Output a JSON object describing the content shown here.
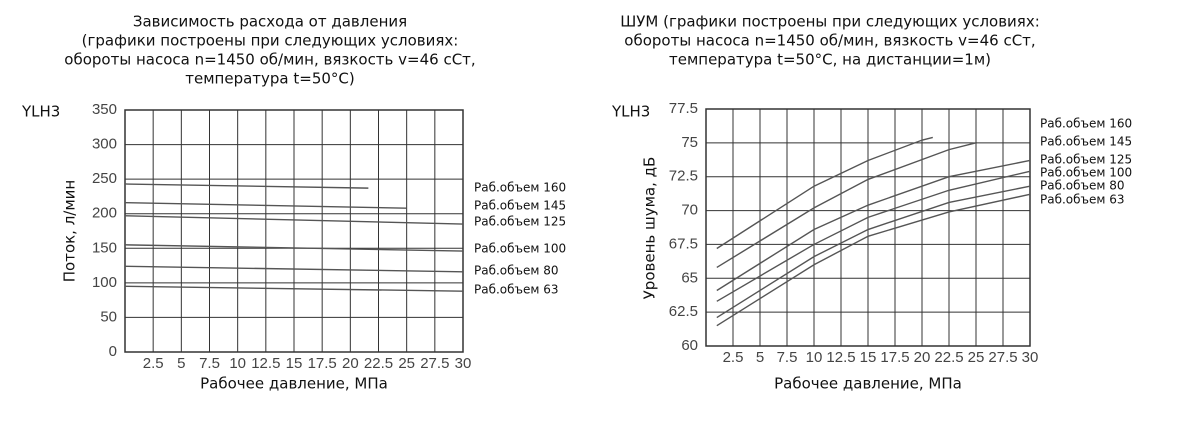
{
  "chart_data": [
    {
      "type": "line",
      "title": [
        "Зависимость расхода от давления",
        "(графики построены при следующих условиях:",
        "обороты насоса n=1450 об/мин, вязкость v=46 сСт,",
        "температура t=50°C)"
      ],
      "label": "YLH3",
      "ylabel": "Поток, л/мин",
      "xlabel": "Рабочее давление, МПа",
      "xlim": [
        0,
        30
      ],
      "xticks": [
        2.5,
        5,
        7.5,
        10,
        12.5,
        15,
        17.5,
        20,
        22.5,
        25,
        27.5,
        30
      ],
      "ylim": [
        0,
        350
      ],
      "yticks": [
        0,
        50,
        100,
        150,
        200,
        250,
        300,
        350
      ],
      "grid": true,
      "series": [
        {
          "name": "Раб.объем 160",
          "color": "#555555",
          "x": [
            0,
            21.6
          ],
          "values": [
            243,
            237
          ]
        },
        {
          "name": "Раб.объем 145",
          "color": "#555555",
          "x": [
            0,
            25
          ],
          "values": [
            216,
            208
          ]
        },
        {
          "name": "Раб.объем 125",
          "color": "#555555",
          "x": [
            0,
            30
          ],
          "values": [
            197,
            185
          ]
        },
        {
          "name": "Раб.объем 100",
          "color": "#555555",
          "x": [
            0,
            30
          ],
          "values": [
            155,
            146
          ]
        },
        {
          "name": "Раб.объем 80",
          "color": "#555555",
          "x": [
            0,
            30
          ],
          "values": [
            124,
            116
          ]
        },
        {
          "name": "Раб.объем 63",
          "color": "#555555",
          "x": [
            0,
            30
          ],
          "values": [
            95,
            88
          ]
        }
      ]
    },
    {
      "type": "line",
      "title": [
        "ШУМ (графики построены при следующих условиях:",
        "обороты насоса n=1450 об/мин, вязкость v=46 сСт,",
        "температура t=50°C, на дистанции=1м)"
      ],
      "label": "YLH3",
      "ylabel": "Уровень шума, дБ",
      "xlabel": "Рабочее давление, МПа",
      "xlim": [
        0,
        30
      ],
      "xticks": [
        2.5,
        5,
        7.5,
        10,
        12.5,
        15,
        17.5,
        20,
        22.5,
        25,
        27.5,
        30
      ],
      "ylim": [
        60,
        77.5
      ],
      "yticks": [
        60,
        62.5,
        65,
        67.5,
        70,
        72.5,
        75,
        77.5
      ],
      "grid": true,
      "series": [
        {
          "name": "Раб.объем 160",
          "color": "#555555",
          "x": [
            1,
            10,
            15,
            20,
            21
          ],
          "values": [
            67.2,
            71.8,
            73.7,
            75.2,
            75.4
          ]
        },
        {
          "name": "Раб.объем 145",
          "color": "#555555",
          "x": [
            1,
            10,
            15,
            22.5,
            25
          ],
          "values": [
            65.8,
            70.2,
            72.3,
            74.5,
            75.0
          ]
        },
        {
          "name": "Раб.объем 125",
          "color": "#555555",
          "x": [
            1,
            10,
            15,
            22.5,
            30
          ],
          "values": [
            64.1,
            68.6,
            70.4,
            72.5,
            73.7
          ]
        },
        {
          "name": "Раб.объем 100",
          "color": "#555555",
          "x": [
            1,
            10,
            15,
            22.5,
            30
          ],
          "values": [
            63.3,
            67.5,
            69.5,
            71.5,
            72.9
          ]
        },
        {
          "name": "Раб.объем 80",
          "color": "#555555",
          "x": [
            1,
            10,
            15,
            22.5,
            30
          ],
          "values": [
            62.1,
            66.6,
            68.6,
            70.6,
            71.8
          ]
        },
        {
          "name": "Раб.объем 63",
          "color": "#555555",
          "x": [
            1,
            10,
            15,
            22.5,
            30
          ],
          "values": [
            61.5,
            66.0,
            68.1,
            69.9,
            71.2
          ]
        }
      ]
    }
  ]
}
